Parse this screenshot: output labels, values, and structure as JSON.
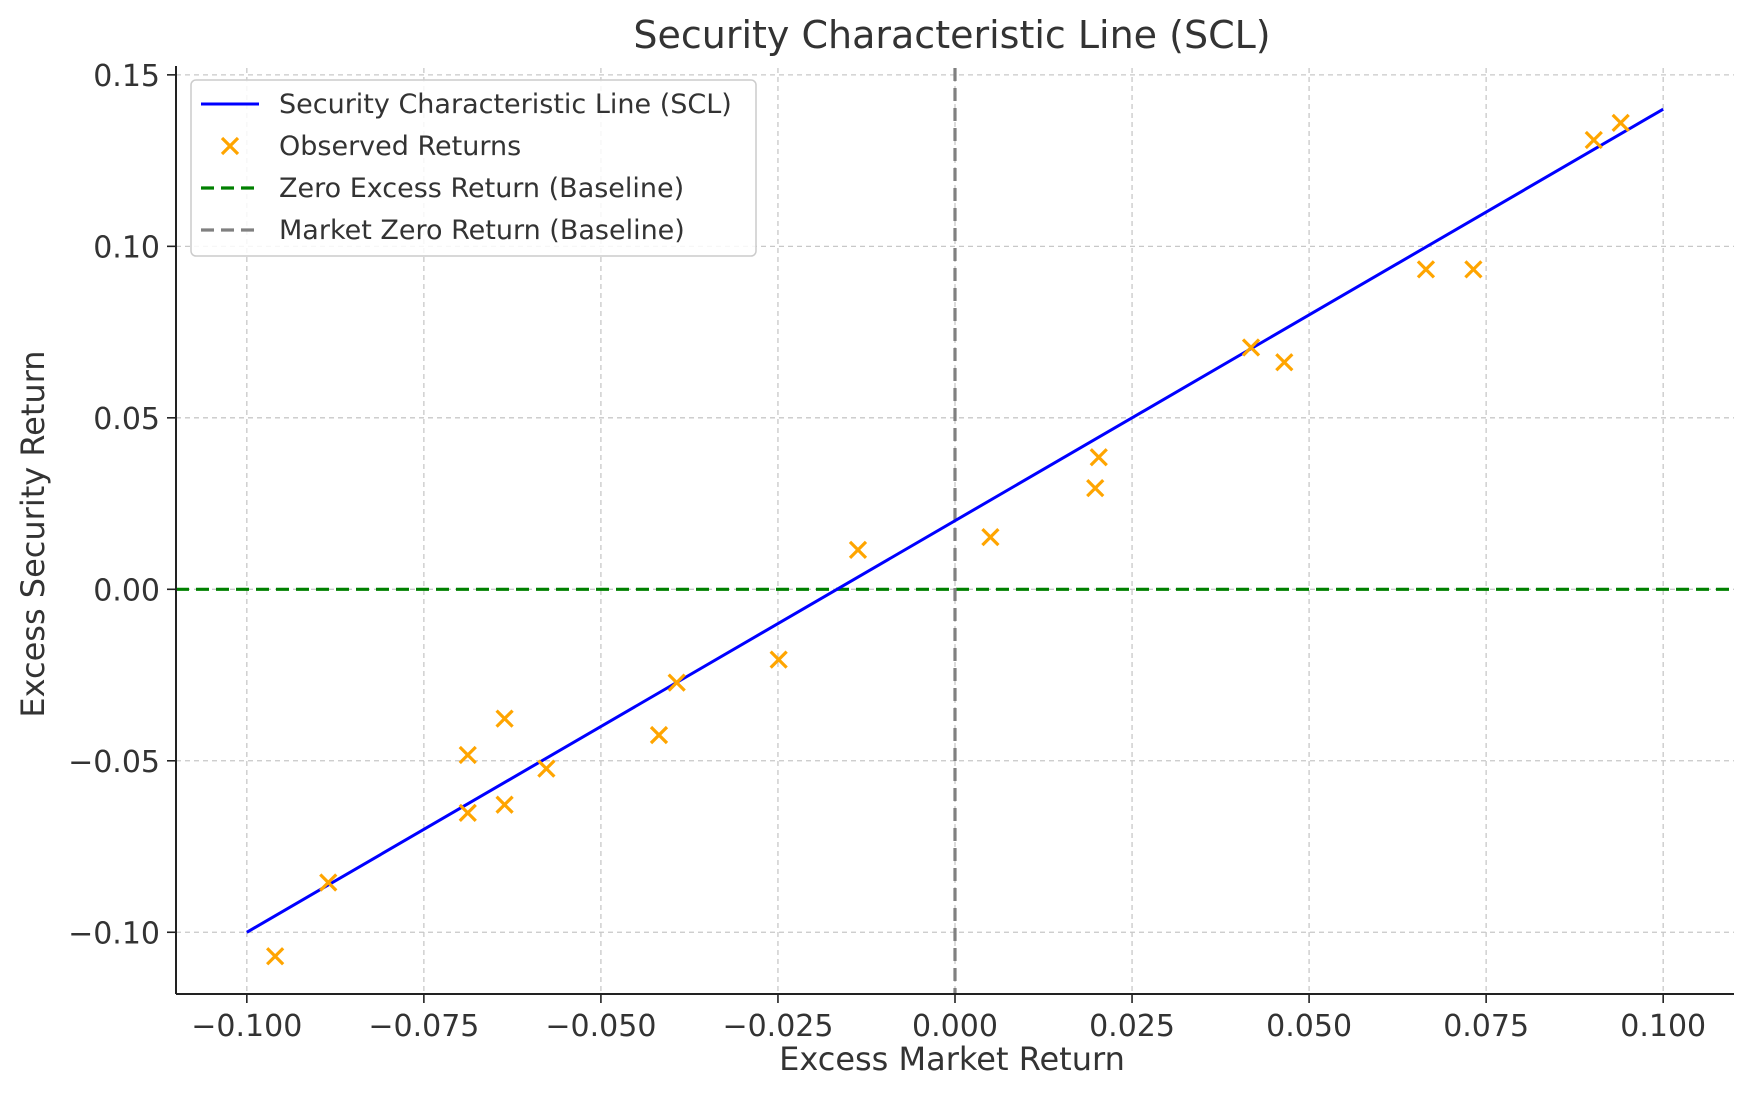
{
  "chart_data": {
    "type": "scatter",
    "title": "Security Characteristic Line (SCL)",
    "xlabel": "Excess Market Return",
    "ylabel": "Excess Security Return",
    "xlim": [
      -0.11,
      0.11
    ],
    "ylim": [
      -0.118,
      0.152
    ],
    "x_ticks": [
      -0.1,
      -0.075,
      -0.05,
      -0.025,
      0.0,
      0.025,
      0.05,
      0.075,
      0.1
    ],
    "x_tick_labels": [
      "−0.100",
      "−0.075",
      "−0.050",
      "−0.025",
      "0.000",
      "0.025",
      "0.050",
      "0.075",
      "0.100"
    ],
    "y_ticks": [
      -0.1,
      -0.05,
      0.0,
      0.05,
      0.1,
      0.15
    ],
    "y_tick_labels": [
      "−0.10",
      "−0.05",
      "0.00",
      "0.05",
      "0.10",
      "0.15"
    ],
    "grid": true,
    "legend_position": "top-left",
    "series": [
      {
        "name": "Security Characteristic Line (SCL)",
        "kind": "line",
        "color": "#0000ff",
        "x": [
          -0.1,
          0.1
        ],
        "y": [
          -0.1,
          0.14
        ]
      },
      {
        "name": "Observed Returns",
        "kind": "scatter",
        "marker": "x",
        "color": "#ffa500",
        "x": [
          -0.096,
          -0.0885,
          -0.0688,
          -0.0688,
          -0.0636,
          -0.0636,
          -0.0577,
          -0.0418,
          -0.0393,
          -0.0249,
          -0.0137,
          0.005,
          0.0198,
          0.0203,
          0.0418,
          0.0465,
          0.0665,
          0.0732,
          0.0902,
          0.094
        ],
        "y": [
          -0.107,
          -0.0855,
          -0.0483,
          -0.0652,
          -0.0377,
          -0.0628,
          -0.0523,
          -0.0425,
          -0.0272,
          -0.0205,
          0.0115,
          0.0152,
          0.0295,
          0.0385,
          0.0705,
          0.0662,
          0.0933,
          0.0933,
          0.131,
          0.136
        ]
      },
      {
        "name": "Zero Excess Return (Baseline)",
        "kind": "hline",
        "style": "dashed",
        "color": "#008000",
        "y": 0.0
      },
      {
        "name": "Market Zero Return (Baseline)",
        "kind": "vline",
        "style": "dashed",
        "color": "#808080",
        "x": 0.0
      }
    ]
  }
}
